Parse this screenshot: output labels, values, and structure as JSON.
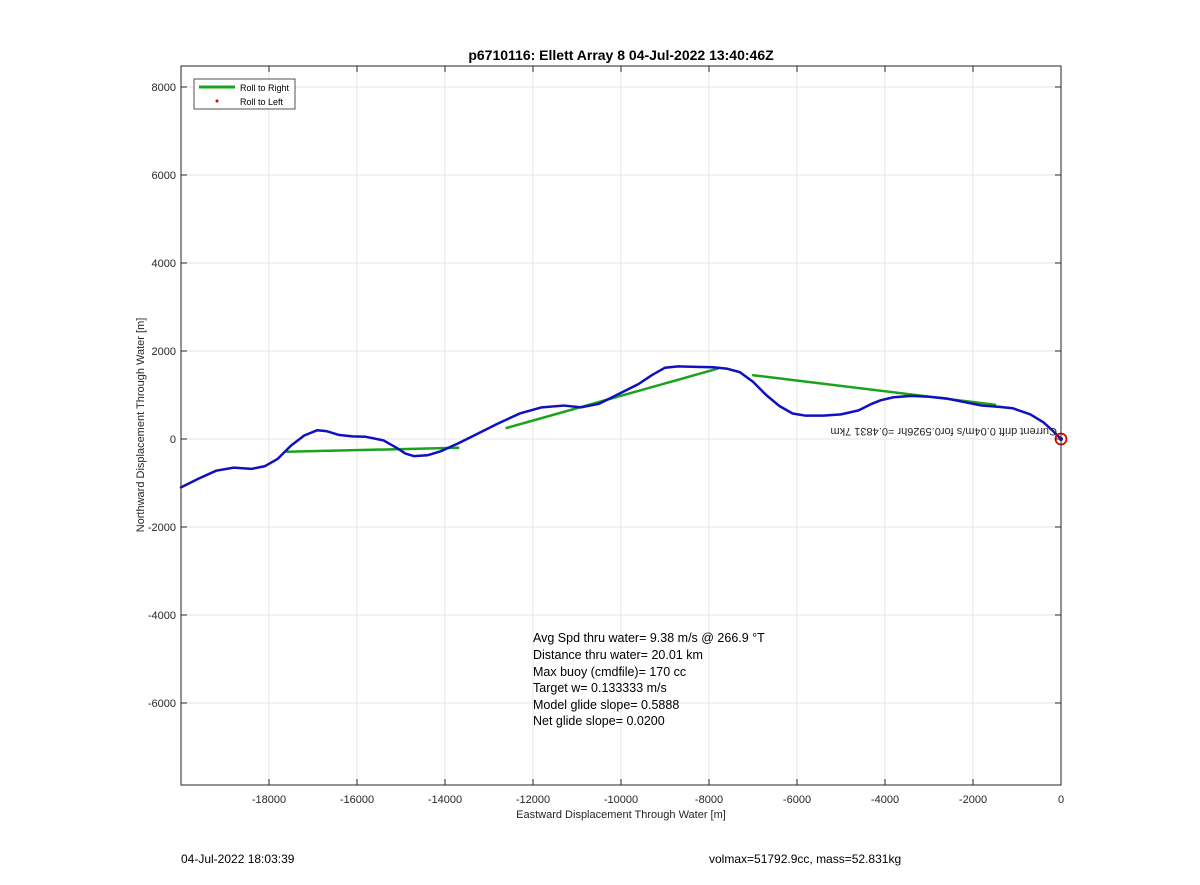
{
  "chart_data": {
    "type": "line",
    "title": "p6710116: Ellett Array 8 04-Jul-2022 13:40:46Z",
    "xlabel": "Eastward Displacement Through Water [m]",
    "ylabel": "Northward Displacement Through Water [m]",
    "xlim": [
      -20000,
      0
    ],
    "ylim": [
      -8000,
      8500
    ],
    "grid": true,
    "legend_position": "top-left",
    "xticks": [
      -18000,
      -16000,
      -14000,
      -12000,
      -10000,
      -8000,
      -6000,
      -4000,
      -2000,
      0
    ],
    "xtick_labels": [
      "-18000",
      "-16000",
      "-14000",
      "-12000",
      "-10000",
      "-8000",
      "-6000",
      "-4000",
      "-2000",
      "0"
    ],
    "yticks": [
      8000,
      6000,
      4000,
      2000,
      0,
      -2000,
      -4000,
      -6000
    ],
    "ytick_labels": [
      "8000",
      "6000",
      "4000",
      "2000",
      "0",
      "-2000",
      "-4000",
      "-6000"
    ],
    "legend": [
      {
        "label": "Roll to Right",
        "color": "#1aa31a",
        "style": "line"
      },
      {
        "label": "Roll to Left",
        "color": "#e00000",
        "style": "dot"
      }
    ],
    "series": [
      {
        "color": "#1010c0",
        "x": [
          -20000,
          -19600,
          -19200,
          -18800,
          -18400,
          -18100,
          -17800,
          -17500,
          -17200,
          -16900,
          -16700,
          -16400,
          -16100,
          -15800,
          -15400,
          -15100,
          -14900,
          -14700,
          -14400,
          -14100,
          -13700,
          -13300,
          -12800,
          -12300,
          -11800,
          -11300,
          -10900,
          -10500,
          -10200,
          -9900,
          -9600,
          -9300,
          -9000,
          -8700,
          -8300,
          -7900,
          -7600,
          -7300,
          -7000,
          -6700,
          -6400,
          -6100,
          -5800,
          -5400,
          -5000,
          -4600,
          -4300,
          -4100,
          -3800,
          -3400,
          -3000,
          -2600,
          -2200,
          -1800,
          -1400,
          -1100,
          -700,
          -400,
          -200,
          0
        ],
        "y": [
          -1100,
          -900,
          -720,
          -650,
          -680,
          -620,
          -450,
          -150,
          80,
          200,
          180,
          90,
          60,
          50,
          -30,
          -200,
          -330,
          -390,
          -370,
          -280,
          -100,
          100,
          350,
          580,
          720,
          760,
          720,
          800,
          950,
          1100,
          1250,
          1450,
          1620,
          1650,
          1640,
          1630,
          1600,
          1520,
          1300,
          1000,
          750,
          580,
          530,
          530,
          560,
          650,
          800,
          880,
          950,
          980,
          960,
          920,
          840,
          760,
          730,
          700,
          560,
          380,
          200,
          0
        ]
      },
      {
        "name": "Roll to Right",
        "color": "#1aa31a",
        "segments": [
          {
            "x": [
              -17600,
              -13700
            ],
            "y": [
              -290,
              -200
            ]
          },
          {
            "x": [
              -12600,
              -7800
            ],
            "y": [
              250,
              1600
            ]
          },
          {
            "x": [
              -7000,
              -1500
            ],
            "y": [
              1450,
              780
            ]
          }
        ]
      }
    ],
    "markers": [
      {
        "name": "end-point",
        "x": 0,
        "y": 0,
        "color": "#e00000"
      }
    ],
    "annotation_mirrored": "Current drift 0.04m/s for0.5926hr =0.4831 7km",
    "stats": [
      "Avg Spd thru water=  9.38 m/s @ 266.9 °T",
      "Distance thru water= 20.01 km",
      "Max buoy (cmdfile)= 170 cc",
      "Target w= 0.133333 m/s",
      "Model glide slope= 0.5888",
      "Net glide slope= 0.0200"
    ]
  },
  "footer": {
    "left": "04-Jul-2022 18:03:39",
    "right": "volmax=51792.9cc, mass=52.831kg"
  },
  "colors": {
    "axis": "#262626",
    "grid": "#e6e6e6",
    "track": "#1010c0",
    "roll_right": "#1aa31a",
    "roll_left": "#e00000"
  }
}
